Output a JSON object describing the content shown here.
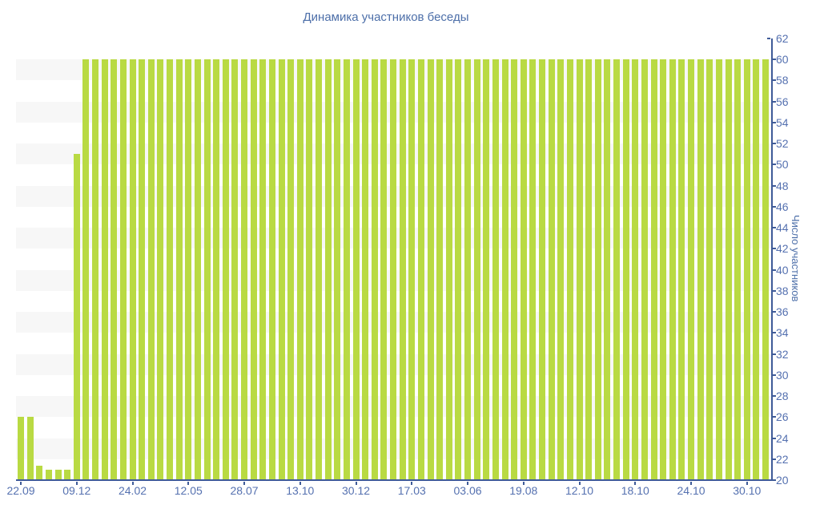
{
  "page": {
    "background_color": "#ffffff"
  },
  "colors": {
    "bar": "#b9da43",
    "axis_line": "#3f5b98",
    "tick_label": "#5571b0",
    "title": "#4d6fa9",
    "stripe": "#f7f7f7"
  },
  "chart_data": {
    "type": "bar",
    "title": "Динамика участников беседы",
    "xlabel": "",
    "ylabel": "Число участников",
    "ylim": [
      20,
      62
    ],
    "ytick_step": 2,
    "grid": "alternating-horizontal-stripes",
    "legend_position": "none",
    "yaxis_side": "right",
    "x_tick_labels": [
      "22.09",
      "09.12",
      "24.02",
      "12.05",
      "28.07",
      "13.10",
      "30.12",
      "17.03",
      "03.06",
      "19.08",
      "12.10",
      "18.10",
      "24.10",
      "30.10"
    ],
    "x_tick_every": 6,
    "values": [
      26,
      26,
      21.4,
      21,
      21,
      21,
      51,
      60,
      60,
      60,
      60,
      60,
      60,
      60,
      60,
      60,
      60,
      60,
      60,
      60,
      60,
      60,
      60,
      60,
      60,
      60,
      60,
      60,
      60,
      60,
      60,
      60,
      60,
      60,
      60,
      60,
      60,
      60,
      60,
      60,
      60,
      60,
      60,
      60,
      60,
      60,
      60,
      60,
      60,
      60,
      60,
      60,
      60,
      60,
      60,
      60,
      60,
      60,
      60,
      60,
      60,
      60,
      60,
      60,
      60,
      60,
      60,
      60,
      60,
      60,
      60,
      60,
      60,
      60,
      60,
      60,
      60,
      60,
      60,
      60,
      60
    ]
  }
}
